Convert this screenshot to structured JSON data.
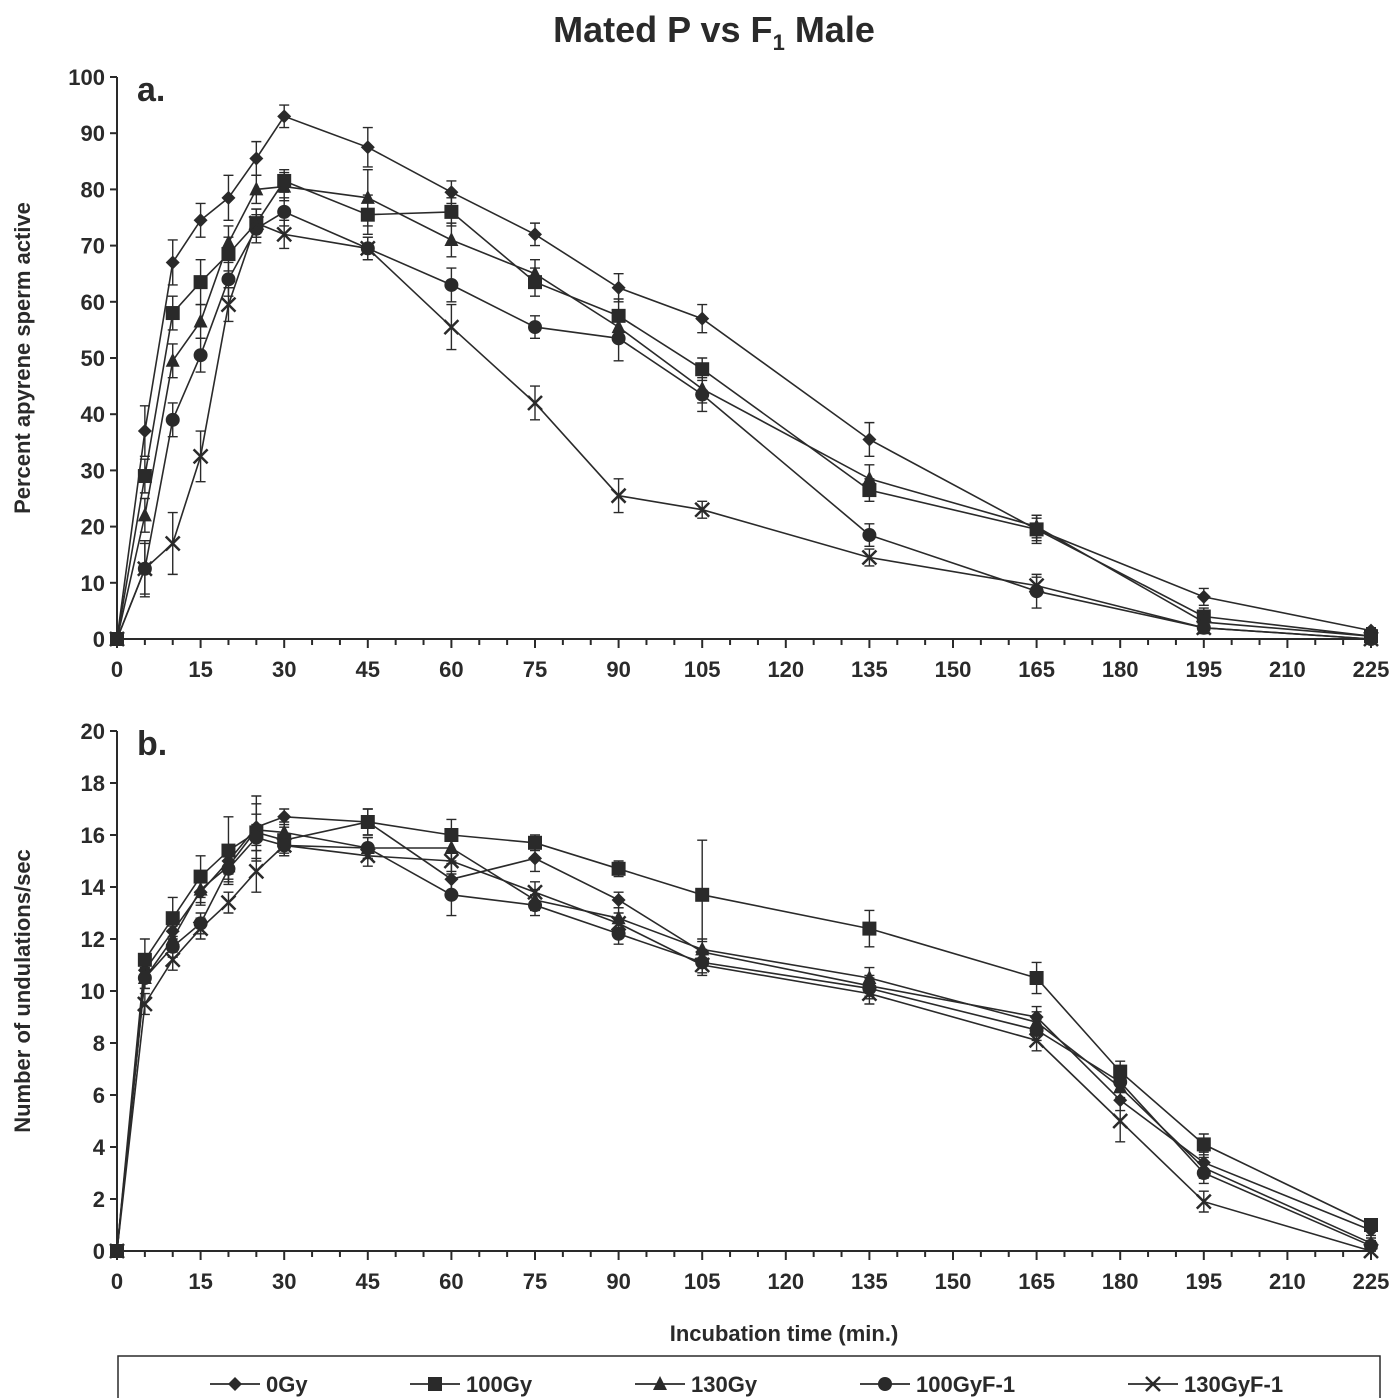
{
  "title_main": "Mated P vs F",
  "title_sub": "1",
  "title_tail": " Male",
  "xlabel": "Incubation time (min.)",
  "chart_data": [
    {
      "type": "line",
      "panel_label": "a.",
      "ylabel": "Percent apyrene sperm active",
      "ylim": [
        0,
        100
      ],
      "yticks": [
        0,
        10,
        20,
        30,
        40,
        50,
        60,
        70,
        80,
        90,
        100
      ],
      "xlim": [
        0,
        225
      ],
      "xticks": [
        0,
        15,
        30,
        45,
        60,
        75,
        90,
        105,
        120,
        135,
        150,
        165,
        180,
        195,
        210,
        225
      ],
      "series": [
        {
          "name": "0Gy",
          "marker": "diamond",
          "x": [
            0,
            5,
            10,
            15,
            20,
            25,
            30,
            45,
            60,
            75,
            90,
            105,
            135,
            165,
            195,
            225
          ],
          "y": [
            0,
            37,
            67,
            74.5,
            78.5,
            85.5,
            93,
            87.5,
            79.5,
            72,
            62.5,
            57,
            35.5,
            19.5,
            7.5,
            1.5
          ],
          "err": [
            0,
            4.5,
            4,
            3,
            4,
            3,
            2,
            3.5,
            2,
            2,
            2.5,
            2.5,
            3,
            2,
            1.5,
            0.5
          ]
        },
        {
          "name": "100Gy",
          "marker": "square",
          "x": [
            0,
            5,
            10,
            15,
            20,
            25,
            30,
            45,
            60,
            75,
            90,
            105,
            135,
            165,
            195,
            225
          ],
          "y": [
            0,
            29,
            58,
            63.5,
            68.5,
            74,
            81.5,
            75.5,
            76,
            63.5,
            57.5,
            48,
            26.5,
            19.5,
            4,
            0.5
          ],
          "err": [
            0,
            3,
            3,
            4,
            3,
            2.5,
            2,
            3.5,
            2.5,
            2.5,
            3,
            2,
            2,
            2.5,
            1.5,
            0.5
          ]
        },
        {
          "name": "130Gy",
          "marker": "triangle",
          "x": [
            0,
            5,
            10,
            15,
            20,
            25,
            30,
            45,
            60,
            75,
            90,
            105,
            135,
            165,
            195,
            225
          ],
          "y": [
            0,
            22,
            49.5,
            56.5,
            70.5,
            80,
            80.5,
            78.5,
            71,
            65,
            55.5,
            44.5,
            28.5,
            20,
            3,
            0.5
          ],
          "err": [
            0,
            3,
            3,
            3,
            3,
            2.5,
            2.5,
            5,
            3,
            2.5,
            2.5,
            2.5,
            2.5,
            2,
            1.5,
            0.5
          ]
        },
        {
          "name": "100GyF-1",
          "marker": "circle",
          "x": [
            0,
            5,
            10,
            15,
            20,
            25,
            30,
            45,
            60,
            75,
            90,
            105,
            135,
            165,
            195,
            225
          ],
          "y": [
            0,
            12.5,
            39,
            50.5,
            64,
            73,
            76,
            69.5,
            63,
            55.5,
            53.5,
            43.5,
            18.5,
            8.5,
            2,
            0
          ],
          "err": [
            0,
            4.5,
            3,
            3,
            3,
            2.5,
            2.5,
            2,
            3,
            2,
            4,
            3,
            2,
            3,
            1,
            0.5
          ]
        },
        {
          "name": "130GyF-1",
          "marker": "x",
          "x": [
            0,
            5,
            10,
            15,
            20,
            25,
            30,
            45,
            60,
            75,
            90,
            105,
            135,
            165,
            195,
            225
          ],
          "y": [
            0,
            12.5,
            17,
            32.5,
            59.5,
            74,
            72,
            69.5,
            55.5,
            42,
            25.5,
            23,
            14.5,
            9.5,
            2,
            0
          ],
          "err": [
            0,
            5,
            5.5,
            4.5,
            3,
            2.5,
            2.5,
            2,
            4,
            3,
            3,
            1.5,
            1.5,
            1.5,
            1,
            0.5
          ]
        }
      ]
    },
    {
      "type": "line",
      "panel_label": "b.",
      "ylabel": "Number of undulations/sec",
      "ylim": [
        0,
        20
      ],
      "yticks": [
        0,
        2,
        4,
        6,
        8,
        10,
        12,
        14,
        16,
        18,
        20
      ],
      "xlim": [
        0,
        225
      ],
      "xticks": [
        0,
        15,
        30,
        45,
        60,
        75,
        90,
        105,
        120,
        135,
        150,
        165,
        180,
        195,
        210,
        225
      ],
      "series": [
        {
          "name": "0Gy",
          "marker": "diamond",
          "x": [
            0,
            5,
            10,
            15,
            20,
            25,
            30,
            45,
            60,
            75,
            90,
            105,
            135,
            165,
            180,
            195,
            225
          ],
          "y": [
            0,
            10.8,
            12.3,
            13.8,
            15,
            16.3,
            16.7,
            16.5,
            14.3,
            15.1,
            13.5,
            11.5,
            10.2,
            9,
            5.8,
            3.4,
            0.8
          ],
          "err": [
            0,
            0.4,
            0.5,
            0.5,
            0.5,
            1.2,
            0.3,
            0.5,
            0.6,
            0.5,
            0.3,
            0.4,
            0.4,
            0.4,
            0.4,
            0.4,
            0.2
          ]
        },
        {
          "name": "100Gy",
          "marker": "square",
          "x": [
            0,
            5,
            10,
            15,
            20,
            25,
            30,
            45,
            60,
            75,
            90,
            105,
            135,
            165,
            180,
            195,
            225
          ],
          "y": [
            0,
            11.2,
            12.8,
            14.4,
            15.4,
            16.1,
            15.8,
            16.5,
            16,
            15.7,
            14.7,
            13.7,
            12.4,
            10.5,
            6.9,
            4.1,
            1
          ],
          "err": [
            0,
            0.8,
            0.8,
            0.8,
            1.3,
            1.1,
            0.5,
            0.5,
            0.6,
            0.3,
            0.3,
            2.1,
            0.7,
            0.6,
            0.4,
            0.4,
            0.2
          ]
        },
        {
          "name": "130Gy",
          "marker": "triangle",
          "x": [
            0,
            5,
            10,
            15,
            20,
            25,
            30,
            45,
            60,
            75,
            90,
            105,
            135,
            165,
            180,
            195,
            225
          ],
          "y": [
            0,
            10.5,
            12,
            13.9,
            14.8,
            16.2,
            16.1,
            15.5,
            15.5,
            13.5,
            12.8,
            11.6,
            10.5,
            8.8,
            6.3,
            3.2,
            0.3
          ],
          "err": [
            0,
            0.4,
            0.5,
            0.5,
            0.5,
            0.6,
            0.4,
            0.4,
            0.5,
            0.4,
            0.4,
            0.4,
            0.4,
            0.4,
            0.4,
            0.4,
            0.2
          ]
        },
        {
          "name": "100GyF-1",
          "marker": "circle",
          "x": [
            0,
            5,
            10,
            15,
            20,
            25,
            30,
            45,
            60,
            75,
            90,
            105,
            135,
            165,
            180,
            195,
            225
          ],
          "y": [
            0,
            10.5,
            11.7,
            12.6,
            14.7,
            15.9,
            15.6,
            15.5,
            13.7,
            13.3,
            12.2,
            11.1,
            10.1,
            8.5,
            6.5,
            3,
            0.2
          ],
          "err": [
            0,
            0.4,
            0.4,
            0.4,
            0.5,
            0.5,
            0.4,
            0.4,
            0.8,
            0.4,
            0.4,
            0.4,
            0.4,
            0.4,
            0.4,
            0.4,
            0.2
          ]
        },
        {
          "name": "130GyF-1",
          "marker": "x",
          "x": [
            0,
            5,
            10,
            15,
            20,
            25,
            30,
            45,
            60,
            75,
            90,
            105,
            135,
            165,
            180,
            195,
            225
          ],
          "y": [
            0,
            9.5,
            11.2,
            12.4,
            13.4,
            14.6,
            15.6,
            15.2,
            15,
            13.8,
            12.6,
            11,
            9.9,
            8.1,
            5,
            1.9,
            0
          ],
          "err": [
            0,
            0.4,
            0.4,
            0.4,
            0.4,
            0.8,
            0.4,
            0.4,
            0.4,
            0.4,
            0.4,
            0.4,
            0.4,
            0.4,
            0.8,
            0.4,
            0.2
          ]
        }
      ]
    }
  ],
  "legend": [
    "0Gy",
    "100Gy",
    "130Gy",
    "100GyF-1",
    "130GyF-1"
  ]
}
